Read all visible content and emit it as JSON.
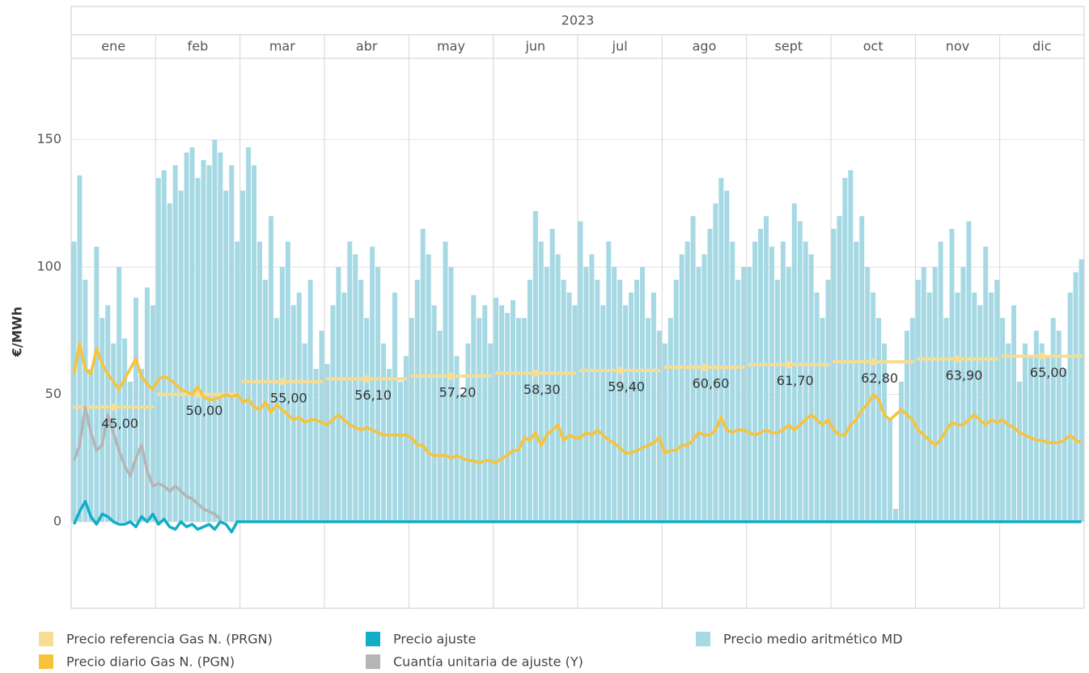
{
  "chart_data": {
    "type": "combo",
    "year": "2023",
    "categories": [
      "ene",
      "feb",
      "mar",
      "abr",
      "may",
      "jun",
      "jul",
      "ago",
      "sept",
      "oct",
      "nov",
      "dic"
    ],
    "y_label": "€/MWh",
    "ylim": [
      -34,
      182
    ],
    "yticks": [
      0,
      50,
      100,
      150
    ],
    "grid": true,
    "series": [
      {
        "name": "Precio referencia Gas N. (PRGN)",
        "color": "#f7dd93",
        "kind": "step",
        "values": [
          45,
          50,
          55,
          56.1,
          57.2,
          58.3,
          59.4,
          60.6,
          61.7,
          62.8,
          63.9,
          65
        ],
        "value_labels": [
          "45,00",
          "50,00",
          "55,00",
          "56,10",
          "57,20",
          "58,30",
          "59,40",
          "60,60",
          "61,70",
          "62,80",
          "63,90",
          "65,00"
        ]
      },
      {
        "name": "Precio diario Gas N. (PGN)",
        "color": "#f7c33b",
        "kind": "line",
        "values": [
          [
            58,
            70,
            60,
            58,
            68,
            62,
            58,
            55,
            52,
            56,
            60,
            64,
            57,
            54,
            52
          ],
          [
            56,
            57,
            56,
            54,
            52,
            51,
            50,
            53,
            49,
            48,
            48,
            49,
            50,
            49,
            50
          ],
          [
            47,
            48,
            45,
            44,
            47,
            43,
            46,
            44,
            42,
            40,
            41,
            39,
            40,
            40,
            39
          ],
          [
            38,
            40,
            42,
            40,
            38,
            37,
            36,
            37,
            36,
            35,
            34,
            34,
            34,
            34,
            34
          ],
          [
            33,
            30,
            30,
            27,
            26,
            26,
            26,
            25,
            26,
            25,
            24,
            24,
            23,
            24,
            24
          ],
          [
            23,
            25,
            26,
            28,
            28,
            33,
            32,
            35,
            30,
            34,
            36,
            38,
            32,
            34,
            33
          ],
          [
            33,
            35,
            34,
            36,
            34,
            32,
            31,
            29,
            27,
            27,
            28,
            29,
            30,
            31,
            33
          ],
          [
            27,
            28,
            28,
            30,
            30,
            32,
            35,
            34,
            34,
            36,
            41,
            36,
            35,
            36,
            36
          ],
          [
            35,
            34,
            35,
            36,
            35,
            35,
            36,
            38,
            36,
            38,
            40,
            42,
            40,
            38,
            40
          ],
          [
            36,
            34,
            34,
            38,
            40,
            44,
            46,
            50,
            48,
            42,
            40,
            42,
            44,
            42,
            40
          ],
          [
            36,
            34,
            32,
            30,
            32,
            36,
            39,
            38,
            38,
            40,
            42,
            40,
            38,
            40,
            39
          ],
          [
            40,
            38,
            37,
            35,
            34,
            33,
            32,
            32,
            31,
            31,
            31,
            32,
            34,
            32,
            31
          ]
        ]
      },
      {
        "name": "Precio ajuste",
        "color": "#12adc8",
        "kind": "line",
        "values": [
          [
            -1,
            4,
            8,
            2,
            -1,
            3,
            2,
            0,
            -1,
            -1,
            0,
            -2,
            2,
            0,
            3
          ],
          [
            -1,
            1,
            -2,
            -3,
            0,
            -2,
            -1,
            -3,
            -2,
            -1,
            -3,
            0,
            -1,
            -4,
            0
          ],
          [
            0,
            0,
            0,
            0,
            0,
            0,
            0,
            0,
            0,
            0,
            0,
            0,
            0,
            0,
            0
          ],
          [
            0,
            0,
            0,
            0,
            0,
            0,
            0,
            0,
            0,
            0,
            0,
            0,
            0,
            0,
            0
          ],
          [
            0,
            0,
            0,
            0,
            0,
            0,
            0,
            0,
            0,
            0,
            0,
            0,
            0,
            0,
            0
          ],
          [
            0,
            0,
            0,
            0,
            0,
            0,
            0,
            0,
            0,
            0,
            0,
            0,
            0,
            0,
            0
          ],
          [
            0,
            0,
            0,
            0,
            0,
            0,
            0,
            0,
            0,
            0,
            0,
            0,
            0,
            0,
            0
          ],
          [
            0,
            0,
            0,
            0,
            0,
            0,
            0,
            0,
            0,
            0,
            0,
            0,
            0,
            0,
            0
          ],
          [
            0,
            0,
            0,
            0,
            0,
            0,
            0,
            0,
            0,
            0,
            0,
            0,
            0,
            0,
            0
          ],
          [
            0,
            0,
            0,
            0,
            0,
            0,
            0,
            0,
            0,
            0,
            0,
            0,
            0,
            0,
            0
          ],
          [
            0,
            0,
            0,
            0,
            0,
            0,
            0,
            0,
            0,
            0,
            0,
            0,
            0,
            0,
            0
          ],
          [
            0,
            0,
            0,
            0,
            0,
            0,
            0,
            0,
            0,
            0,
            0,
            0,
            0,
            0,
            0
          ]
        ]
      },
      {
        "name": "Cuantía unitaria de ajuste (Y)",
        "color": "#b5b5b5",
        "kind": "line",
        "values": [
          [
            24,
            30,
            45,
            35,
            28,
            30,
            42,
            35,
            28,
            22,
            18,
            25,
            30,
            20,
            14
          ],
          [
            15,
            14,
            12,
            14,
            12,
            10,
            9,
            7,
            5,
            4,
            3,
            1,
            null,
            null,
            0
          ]
        ]
      },
      {
        "name": "Precio medio aritmético MD",
        "color": "#a6d9e4",
        "kind": "bar",
        "values": [
          [
            110,
            136,
            95,
            60,
            108,
            80,
            85,
            70,
            100,
            72,
            55,
            88,
            60,
            92,
            85
          ],
          [
            135,
            138,
            125,
            140,
            130,
            145,
            147,
            135,
            142,
            140,
            150,
            145,
            130,
            140,
            110
          ],
          [
            130,
            147,
            140,
            110,
            95,
            120,
            80,
            100,
            110,
            85,
            90,
            70,
            95,
            60,
            75
          ],
          [
            62,
            85,
            100,
            90,
            110,
            105,
            95,
            80,
            108,
            100,
            70,
            60,
            90,
            55,
            65
          ],
          [
            80,
            95,
            115,
            105,
            85,
            75,
            110,
            100,
            65,
            50,
            70,
            89,
            80,
            85,
            70
          ],
          [
            88,
            85,
            82,
            87,
            80,
            80,
            95,
            122,
            110,
            100,
            115,
            105,
            95,
            90,
            85
          ],
          [
            118,
            100,
            105,
            95,
            85,
            110,
            100,
            95,
            85,
            90,
            95,
            100,
            80,
            90,
            75
          ],
          [
            70,
            80,
            95,
            105,
            110,
            120,
            100,
            105,
            115,
            125,
            135,
            130,
            110,
            95,
            100
          ],
          [
            100,
            110,
            115,
            120,
            108,
            95,
            110,
            100,
            125,
            118,
            110,
            105,
            90,
            80,
            95
          ],
          [
            115,
            120,
            135,
            138,
            110,
            120,
            100,
            90,
            80,
            70,
            40,
            5,
            55,
            75,
            80
          ],
          [
            95,
            100,
            90,
            100,
            110,
            80,
            115,
            90,
            100,
            118,
            90,
            85,
            108,
            90,
            95
          ],
          [
            80,
            70,
            85,
            55,
            70,
            65,
            75,
            70,
            65,
            80,
            75,
            60,
            90,
            98,
            103
          ]
        ]
      }
    ]
  }
}
